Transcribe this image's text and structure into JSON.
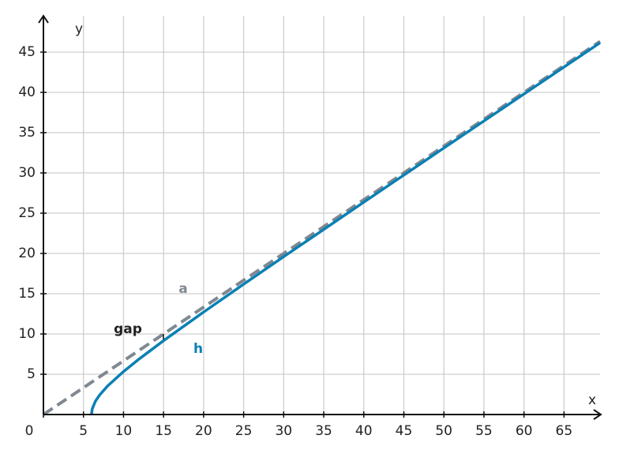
{
  "chart_data": {
    "type": "line",
    "x_label": "x",
    "y_label": "y",
    "x": [
      0,
      6,
      6.1,
      6.5,
      7,
      8,
      10,
      12,
      15,
      20,
      25,
      30,
      40,
      50,
      60,
      69.5
    ],
    "series": [
      {
        "name": "a",
        "color": "#808890",
        "dashed": true,
        "values": [
          0,
          4,
          4.07,
          4.33,
          4.67,
          5.33,
          6.67,
          8,
          10,
          13.33,
          16.67,
          20,
          26.67,
          33.33,
          40,
          46.33
        ]
      },
      {
        "name": "h",
        "color": "#0a80b4",
        "dashed": false,
        "values": [
          null,
          0,
          0.73,
          1.67,
          2.4,
          3.53,
          5.33,
          6.93,
          9.17,
          12.72,
          16.18,
          19.6,
          26.37,
          33.09,
          39.8,
          46.16
        ]
      }
    ],
    "annotations": [
      "gap"
    ],
    "xlim": [
      0,
      69.5
    ],
    "ylim": [
      0,
      49.5
    ],
    "xticks": [
      0,
      5,
      10,
      15,
      20,
      25,
      30,
      35,
      40,
      45,
      50,
      55,
      60,
      65
    ],
    "yticks": [
      5,
      10,
      15,
      20,
      25,
      30,
      35,
      40,
      45
    ],
    "grid": true
  }
}
